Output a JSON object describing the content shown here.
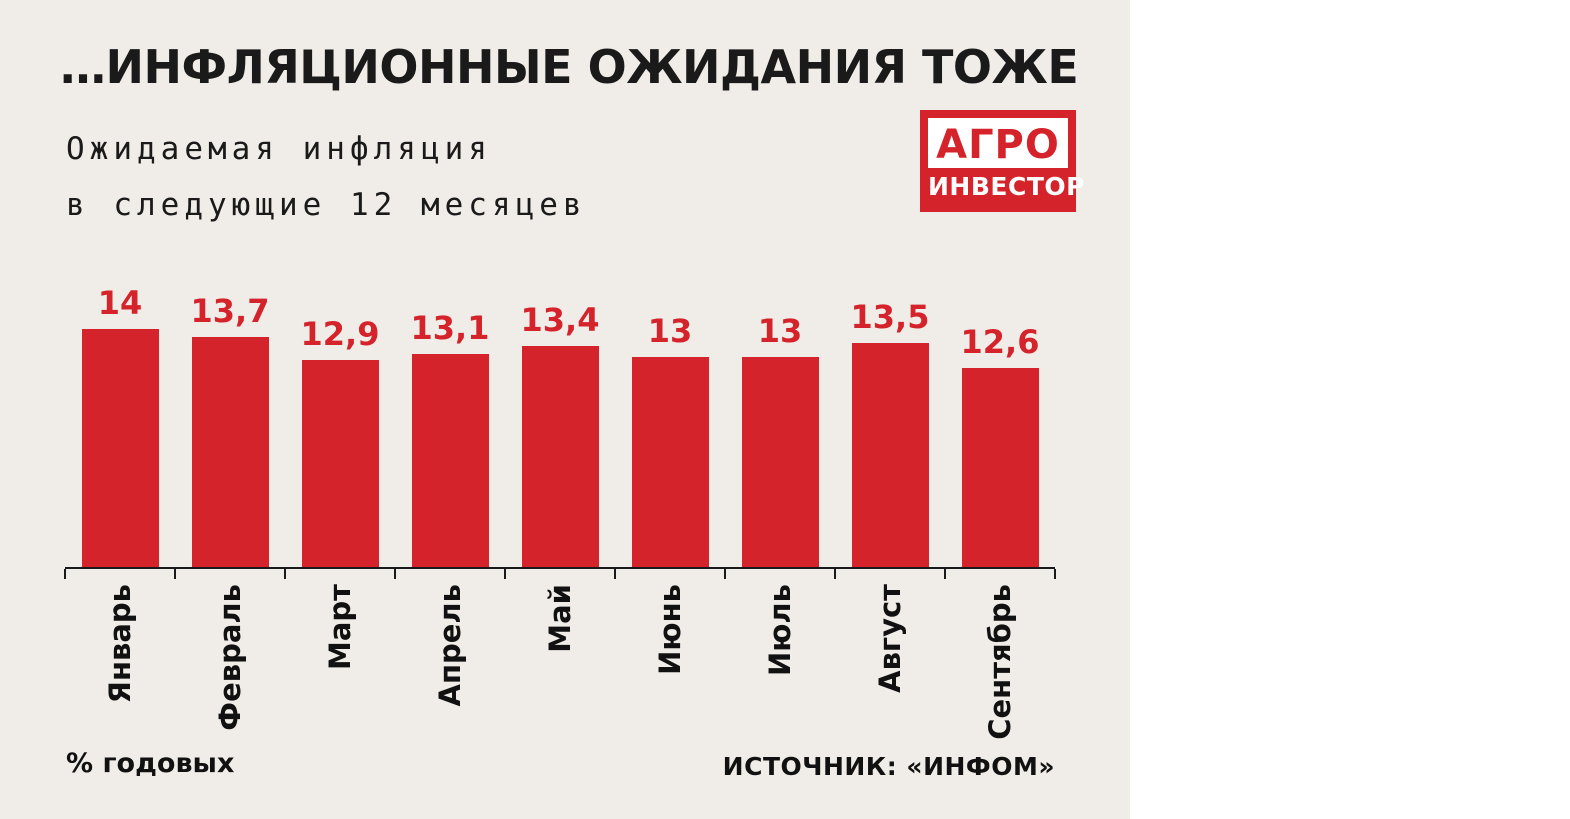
{
  "title": "…ИНФЛЯЦИОННЫЕ ОЖИДАНИЯ ТОЖЕ",
  "subtitle": {
    "line1": "Ожидаемая инфляция",
    "line2": "в следующие 12 месяцев"
  },
  "logo": {
    "line1": "АГРО",
    "line2": "ИНВЕСТОР"
  },
  "footer": {
    "left": "% годовых",
    "right": "ИСТОЧНИК: «ИНФОМ»"
  },
  "colors": {
    "background": "#f0ede8",
    "bar": "#d5232b",
    "value_label": "#d5232b",
    "text": "#1a1a1a",
    "logo_background": "#d5232b"
  },
  "chart_data": {
    "type": "bar",
    "title": "Ожидаемая инфляция в следующие 12 месяцев",
    "categories": [
      "Январь",
      "Февраль",
      "Март",
      "Апрель",
      "Май",
      "Июнь",
      "Июль",
      "Август",
      "Сентябрь"
    ],
    "values": [
      14,
      13.7,
      12.9,
      13.1,
      13.4,
      13,
      13,
      13.5,
      12.6
    ],
    "value_labels": [
      "14",
      "13,7",
      "12,9",
      "13,1",
      "13,4",
      "13",
      "13",
      "13,5",
      "12,6"
    ],
    "xlabel": "",
    "ylabel": "% годовых",
    "unit": "% годовых",
    "source": "ИСТОЧНИК: «ИНФОМ»",
    "grid": false,
    "legend": false,
    "bar_color": "#d5232b",
    "x_axis_labels_rotated_degrees": 90
  }
}
